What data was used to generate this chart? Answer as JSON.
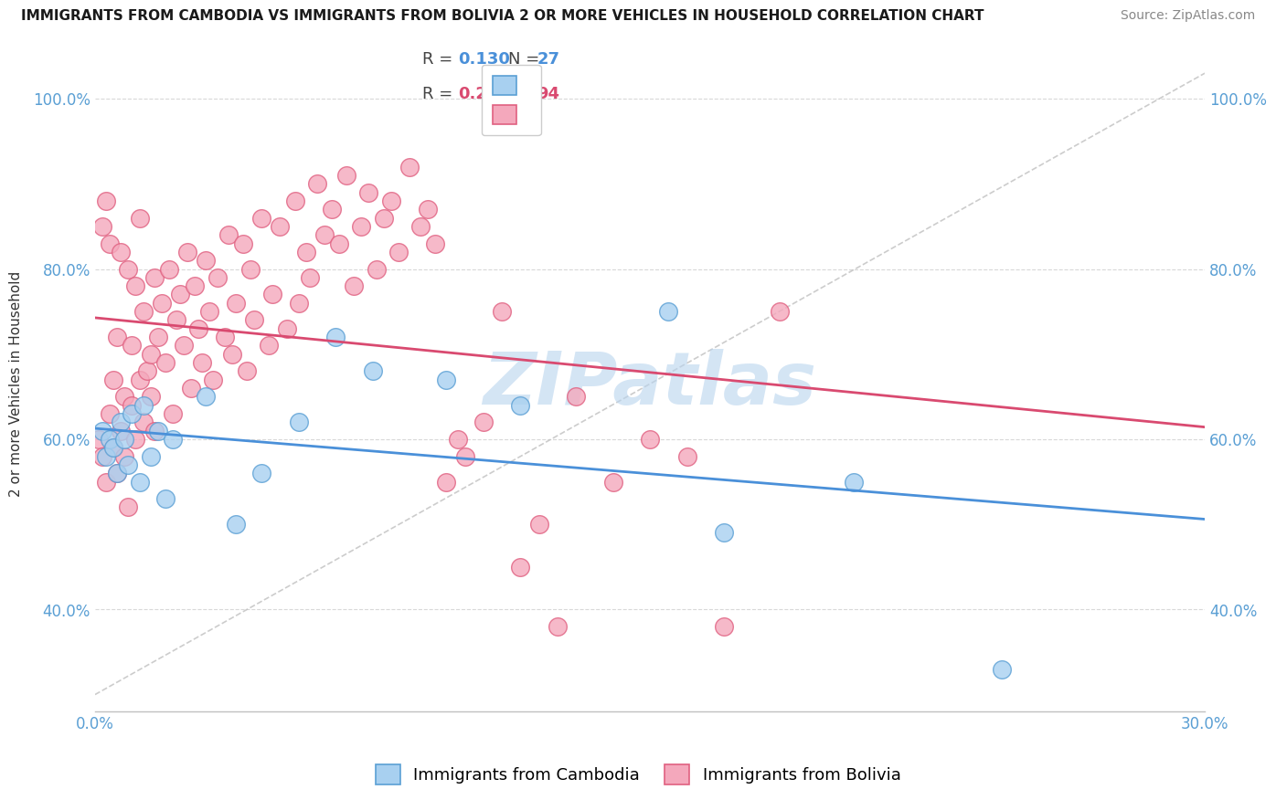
{
  "title": "IMMIGRANTS FROM CAMBODIA VS IMMIGRANTS FROM BOLIVIA 2 OR MORE VEHICLES IN HOUSEHOLD CORRELATION CHART",
  "source": "Source: ZipAtlas.com",
  "ylabel": "2 or more Vehicles in Household",
  "xlim": [
    0.0,
    0.3
  ],
  "ylim": [
    0.28,
    1.05
  ],
  "cambodia_color": "#a8d0f0",
  "bolivia_color": "#f4a8bc",
  "cambodia_edge": "#5a9fd4",
  "bolivia_edge": "#e06080",
  "trend_cambodia_color": "#4a90d9",
  "trend_bolivia_color": "#d94a70",
  "ref_line_color": "#c0c0c0",
  "R_cambodia": 0.13,
  "N_cambodia": 27,
  "R_bolivia": 0.253,
  "N_bolivia": 94,
  "watermark": "ZIPatlas",
  "watermark_color": "#b8d4ee",
  "legend_label_cambodia": "Immigrants from Cambodia",
  "legend_label_bolivia": "Immigrants from Bolivia",
  "background_color": "#ffffff",
  "cambodia_x": [
    0.002,
    0.003,
    0.004,
    0.005,
    0.006,
    0.007,
    0.008,
    0.009,
    0.01,
    0.012,
    0.013,
    0.015,
    0.017,
    0.019,
    0.021,
    0.03,
    0.038,
    0.045,
    0.055,
    0.065,
    0.075,
    0.095,
    0.115,
    0.155,
    0.17,
    0.205,
    0.245
  ],
  "cambodia_y": [
    0.61,
    0.58,
    0.6,
    0.59,
    0.56,
    0.62,
    0.6,
    0.57,
    0.63,
    0.55,
    0.64,
    0.58,
    0.61,
    0.53,
    0.6,
    0.65,
    0.5,
    0.56,
    0.62,
    0.72,
    0.68,
    0.67,
    0.64,
    0.75,
    0.49,
    0.55,
    0.33
  ],
  "bolivia_x": [
    0.001,
    0.002,
    0.002,
    0.003,
    0.003,
    0.004,
    0.004,
    0.005,
    0.005,
    0.006,
    0.006,
    0.007,
    0.007,
    0.008,
    0.008,
    0.009,
    0.009,
    0.01,
    0.01,
    0.011,
    0.011,
    0.012,
    0.012,
    0.013,
    0.013,
    0.014,
    0.015,
    0.015,
    0.016,
    0.016,
    0.017,
    0.018,
    0.019,
    0.02,
    0.021,
    0.022,
    0.023,
    0.024,
    0.025,
    0.026,
    0.027,
    0.028,
    0.029,
    0.03,
    0.031,
    0.032,
    0.033,
    0.035,
    0.036,
    0.037,
    0.038,
    0.04,
    0.041,
    0.042,
    0.043,
    0.045,
    0.047,
    0.048,
    0.05,
    0.052,
    0.054,
    0.055,
    0.057,
    0.058,
    0.06,
    0.062,
    0.064,
    0.066,
    0.068,
    0.07,
    0.072,
    0.074,
    0.076,
    0.078,
    0.08,
    0.082,
    0.085,
    0.088,
    0.09,
    0.092,
    0.095,
    0.098,
    0.1,
    0.105,
    0.11,
    0.115,
    0.12,
    0.125,
    0.13,
    0.14,
    0.15,
    0.16,
    0.17,
    0.185
  ],
  "bolivia_y": [
    0.6,
    0.85,
    0.58,
    0.88,
    0.55,
    0.83,
    0.63,
    0.59,
    0.67,
    0.72,
    0.56,
    0.82,
    0.61,
    0.65,
    0.58,
    0.8,
    0.52,
    0.71,
    0.64,
    0.78,
    0.6,
    0.86,
    0.67,
    0.75,
    0.62,
    0.68,
    0.7,
    0.65,
    0.79,
    0.61,
    0.72,
    0.76,
    0.69,
    0.8,
    0.63,
    0.74,
    0.77,
    0.71,
    0.82,
    0.66,
    0.78,
    0.73,
    0.69,
    0.81,
    0.75,
    0.67,
    0.79,
    0.72,
    0.84,
    0.7,
    0.76,
    0.83,
    0.68,
    0.8,
    0.74,
    0.86,
    0.71,
    0.77,
    0.85,
    0.73,
    0.88,
    0.76,
    0.82,
    0.79,
    0.9,
    0.84,
    0.87,
    0.83,
    0.91,
    0.78,
    0.85,
    0.89,
    0.8,
    0.86,
    0.88,
    0.82,
    0.92,
    0.85,
    0.87,
    0.83,
    0.55,
    0.6,
    0.58,
    0.62,
    0.75,
    0.45,
    0.5,
    0.38,
    0.65,
    0.55,
    0.6,
    0.58,
    0.38,
    0.75
  ]
}
